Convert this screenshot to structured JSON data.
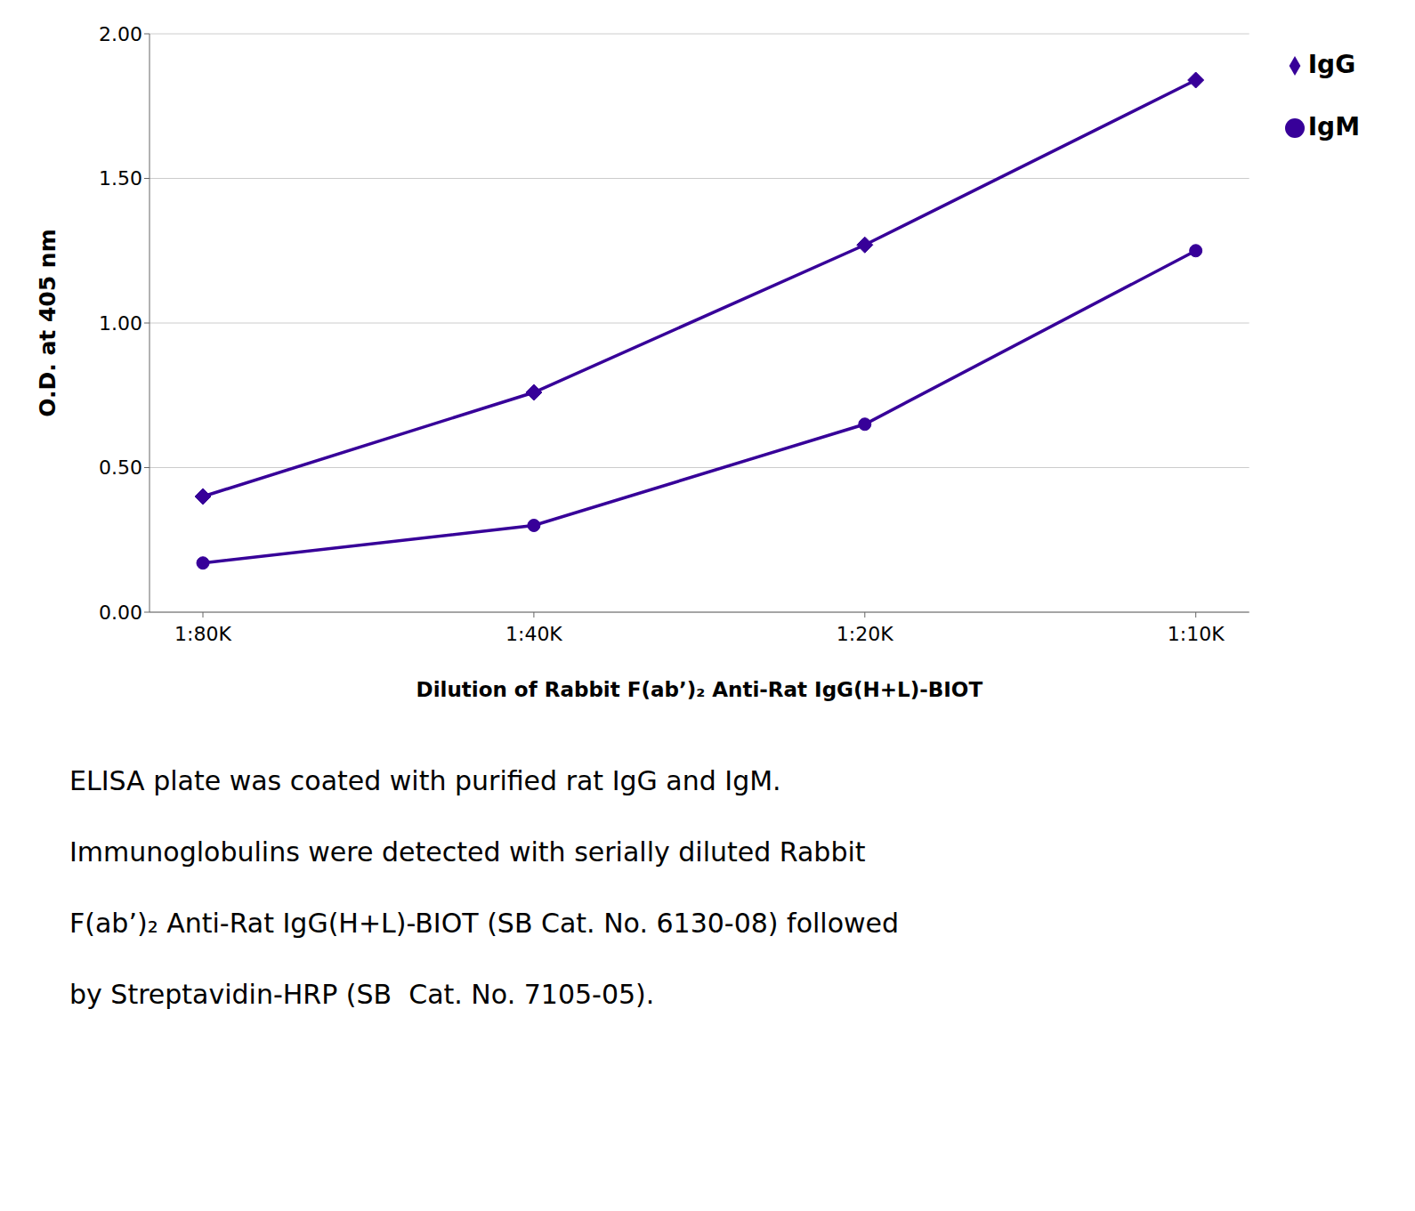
{
  "chart_data": {
    "type": "line",
    "xlabel": "Dilution of Rabbit F(ab’)₂ Anti-Rat IgG(H+L)-BIOT",
    "ylabel": "O.D. at 405 nm",
    "categories": [
      "1:80K",
      "1:40K",
      "1:20K",
      "1:10K"
    ],
    "series": [
      {
        "name": "IgG",
        "color": "#370099",
        "marker": "diamond",
        "values": [
          0.4,
          0.76,
          1.27,
          1.84
        ]
      },
      {
        "name": "IgM",
        "color": "#370099",
        "marker": "circle",
        "values": [
          0.17,
          0.3,
          0.65,
          1.25
        ]
      }
    ],
    "ylim": [
      0.0,
      2.0
    ],
    "yticks": [
      {
        "value": 0,
        "label": "0.00"
      },
      {
        "value": 0.5,
        "label": "0.50"
      },
      {
        "value": 1,
        "label": "1.00"
      },
      {
        "value": 1.5,
        "label": "1.50"
      },
      {
        "value": 2,
        "label": "2.00"
      }
    ],
    "grid": true,
    "legend": "upper right",
    "annotations": [
      "ELISA plate was coated with purified rat IgG and IgM.",
      "Immunoglobulins were detected with serially diluted Rabbit",
      "F(ab’)₂ Anti-Rat IgG(H+L)-BIOT (SB Cat. No. 6130-08) followed",
      "by Streptavidin-HRP (SB  Cat. No. 7105-05)."
    ]
  }
}
